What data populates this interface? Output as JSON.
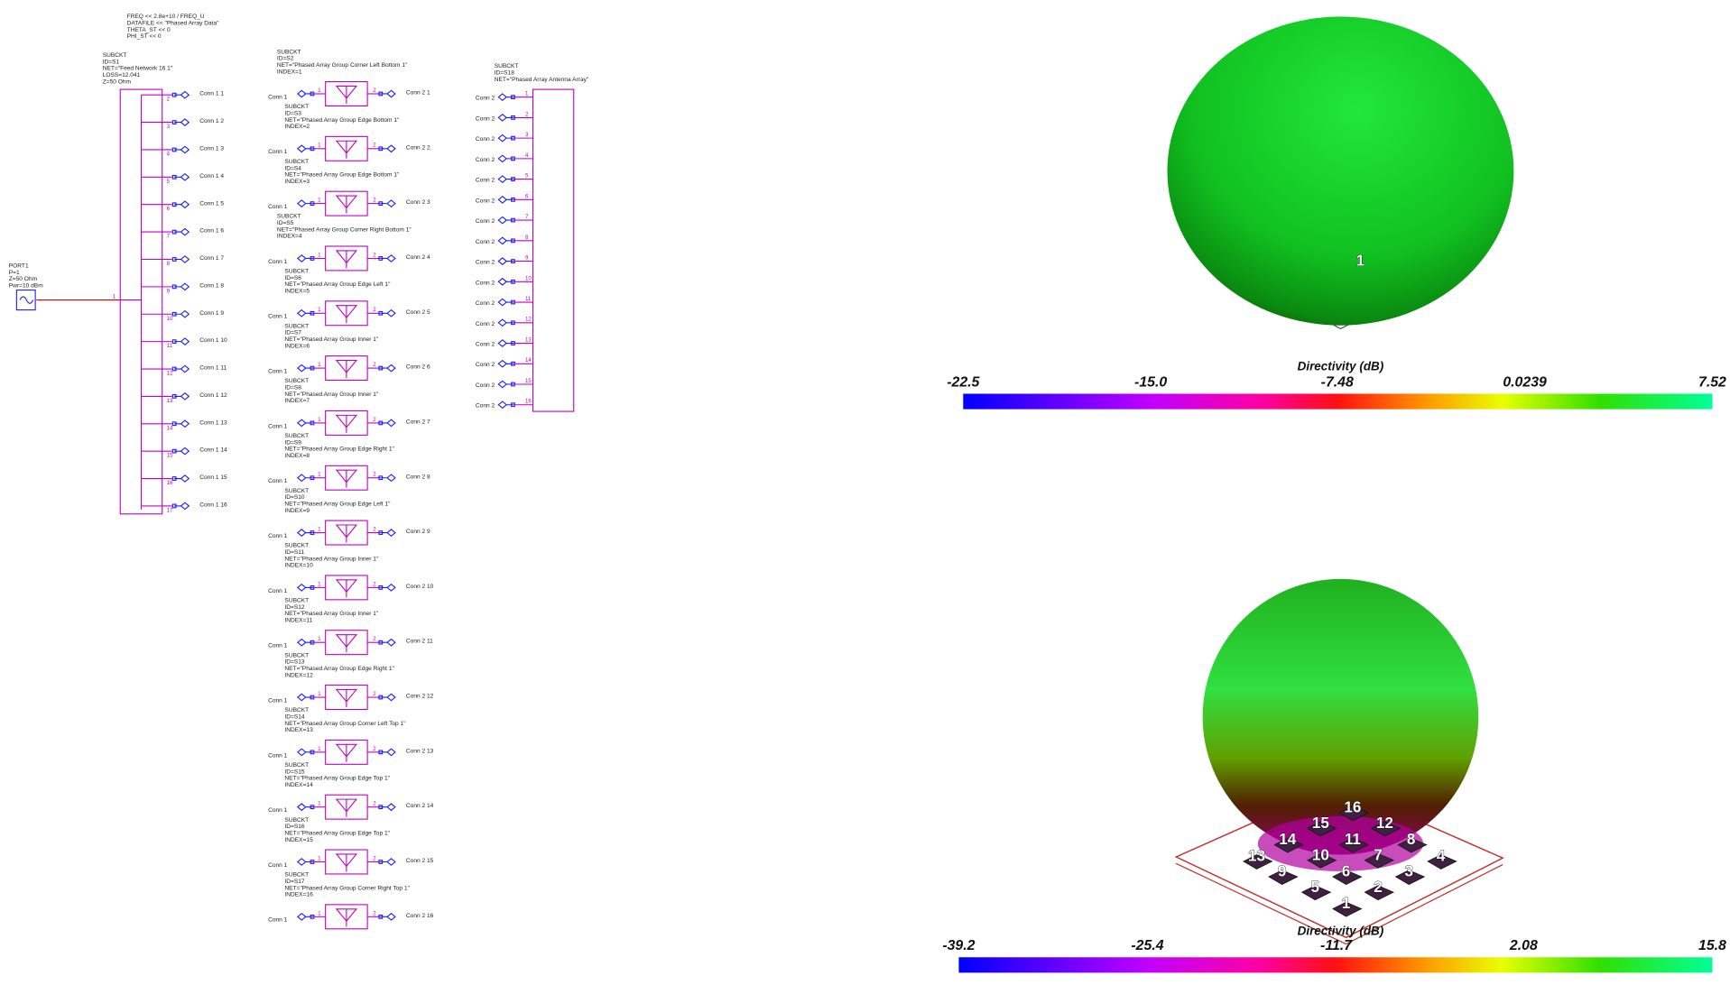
{
  "equations": [
    "FREQ << 2.8e+10 / FREQ_U",
    "DATAFILE << \"Phased Array Data\"",
    "THETA_ST << 0",
    "PHI_ST << 0"
  ],
  "port": [
    "PORT1",
    "P=1",
    "Z=50 Ohm",
    "Pwr=10 dBm"
  ],
  "feed": {
    "label": [
      "SUBCKT",
      "ID=S1",
      "NET=\"Feed Network 16 1\"",
      "LOSS=12.041",
      "Z=50 Ohm"
    ],
    "pins": [
      "1",
      "2",
      "3",
      "4",
      "5",
      "6",
      "7",
      "8",
      "9",
      "10",
      "11",
      "12",
      "13",
      "14",
      "15",
      "16",
      "17"
    ],
    "conns": [
      "Conn 1 1",
      "Conn 1 2",
      "Conn 1 3",
      "Conn 1 4",
      "Conn 1 5",
      "Conn 1 6",
      "Conn 1 7",
      "Conn 1 8",
      "Conn 1 9",
      "Conn 1 10",
      "Conn 1 11",
      "Conn 1 12",
      "Conn 1 13",
      "Conn 1 14",
      "Conn 1 15",
      "Conn 1 16"
    ]
  },
  "group_pins": [
    "1",
    "2"
  ],
  "groups": [
    {
      "label": [
        "SUBCKT",
        "ID=S2",
        "NET=\"Phased Array Group Corner Left Bottom 1\"",
        "INDEX=1"
      ],
      "in": "Conn 1",
      "out": "Conn 2 1"
    },
    {
      "label": [
        "SUBCKT",
        "ID=S3",
        "NET=\"Phased Array Group Edge Bottom 1\"",
        "INDEX=2"
      ],
      "in": "Conn 1",
      "out": "Conn 2 2"
    },
    {
      "label": [
        "SUBCKT",
        "ID=S4",
        "NET=\"Phased Array Group Edge Bottom 1\"",
        "INDEX=3"
      ],
      "in": "Conn 1",
      "out": "Conn 2 3"
    },
    {
      "label": [
        "SUBCKT",
        "ID=S5",
        "NET=\"Phased Array Group Corner Right Bottom 1\"",
        "INDEX=4"
      ],
      "in": "Conn 1",
      "out": "Conn 2 4"
    },
    {
      "label": [
        "SUBCKT",
        "ID=S6",
        "NET=\"Phased Array Group Edge Left 1\"",
        "INDEX=5"
      ],
      "in": "Conn 1",
      "out": "Conn 2 5"
    },
    {
      "label": [
        "SUBCKT",
        "ID=S7",
        "NET=\"Phased Array Group Inner 1\"",
        "INDEX=6"
      ],
      "in": "Conn 1",
      "out": "Conn 2 6"
    },
    {
      "label": [
        "SUBCKT",
        "ID=S8",
        "NET=\"Phased Array Group Inner 1\"",
        "INDEX=7"
      ],
      "in": "Conn 1",
      "out": "Conn 2 7"
    },
    {
      "label": [
        "SUBCKT",
        "ID=S9",
        "NET=\"Phased Array Group Edge Right 1\"",
        "INDEX=8"
      ],
      "in": "Conn 1",
      "out": "Conn 2 8"
    },
    {
      "label": [
        "SUBCKT",
        "ID=S10",
        "NET=\"Phased Array Group Edge Left 1\"",
        "INDEX=9"
      ],
      "in": "Conn 1",
      "out": "Conn 2 9"
    },
    {
      "label": [
        "SUBCKT",
        "ID=S11",
        "NET=\"Phased Array Group Inner 1\"",
        "INDEX=10"
      ],
      "in": "Conn 1",
      "out": "Conn 2 10"
    },
    {
      "label": [
        "SUBCKT",
        "ID=S12",
        "NET=\"Phased Array Group Inner 1\"",
        "INDEX=11"
      ],
      "in": "Conn 1",
      "out": "Conn 2 11"
    },
    {
      "label": [
        "SUBCKT",
        "ID=S13",
        "NET=\"Phased Array Group Edge Right 1\"",
        "INDEX=12"
      ],
      "in": "Conn 1",
      "out": "Conn 2 12"
    },
    {
      "label": [
        "SUBCKT",
        "ID=S14",
        "NET=\"Phased Array Group Corner Left Top 1\"",
        "INDEX=13"
      ],
      "in": "Conn 1",
      "out": "Conn 2 13"
    },
    {
      "label": [
        "SUBCKT",
        "ID=S15",
        "NET=\"Phased Array Group Edge Top 1\"",
        "INDEX=14"
      ],
      "in": "Conn 1",
      "out": "Conn 2 14"
    },
    {
      "label": [
        "SUBCKT",
        "ID=S16",
        "NET=\"Phased Array Group Edge Top 1\"",
        "INDEX=15"
      ],
      "in": "Conn 1",
      "out": "Conn 2 15"
    },
    {
      "label": [
        "SUBCKT",
        "ID=S17",
        "NET=\"Phased Array Group Corner Right Top 1\"",
        "INDEX=16"
      ],
      "in": "Conn 1",
      "out": "Conn 2 16"
    }
  ],
  "array": {
    "label": [
      "SUBCKT",
      "ID=S18",
      "NET=\"Phased Array Antenna Array\""
    ],
    "pins": [
      "1",
      "2",
      "3",
      "4",
      "5",
      "6",
      "7",
      "8",
      "9",
      "10",
      "11",
      "12",
      "13",
      "14",
      "15",
      "16"
    ],
    "conns": [
      "Conn 2",
      "Conn 2",
      "Conn 2",
      "Conn 2",
      "Conn 2",
      "Conn 2",
      "Conn 2",
      "Conn 2",
      "Conn 2",
      "Conn 2",
      "Conn 2",
      "Conn 2",
      "Conn 2",
      "Conn 2",
      "Conn 2",
      "Conn 2"
    ]
  },
  "plots": [
    {
      "title": "Directivity (dB)",
      "scale": [
        "-22.5",
        "-15.0",
        "-7.48",
        "0.0239",
        "7.52"
      ],
      "elements": [
        "1"
      ]
    },
    {
      "title": "Directivity (dB)",
      "scale": [
        "-39.2",
        "-25.4",
        "-11.7",
        "2.08",
        "15.8"
      ],
      "elements": [
        "16",
        "15",
        "12",
        "14",
        "11",
        "8",
        "13",
        "10",
        "7",
        "4",
        "9",
        "6",
        "3",
        "5",
        "2",
        "1"
      ]
    }
  ]
}
